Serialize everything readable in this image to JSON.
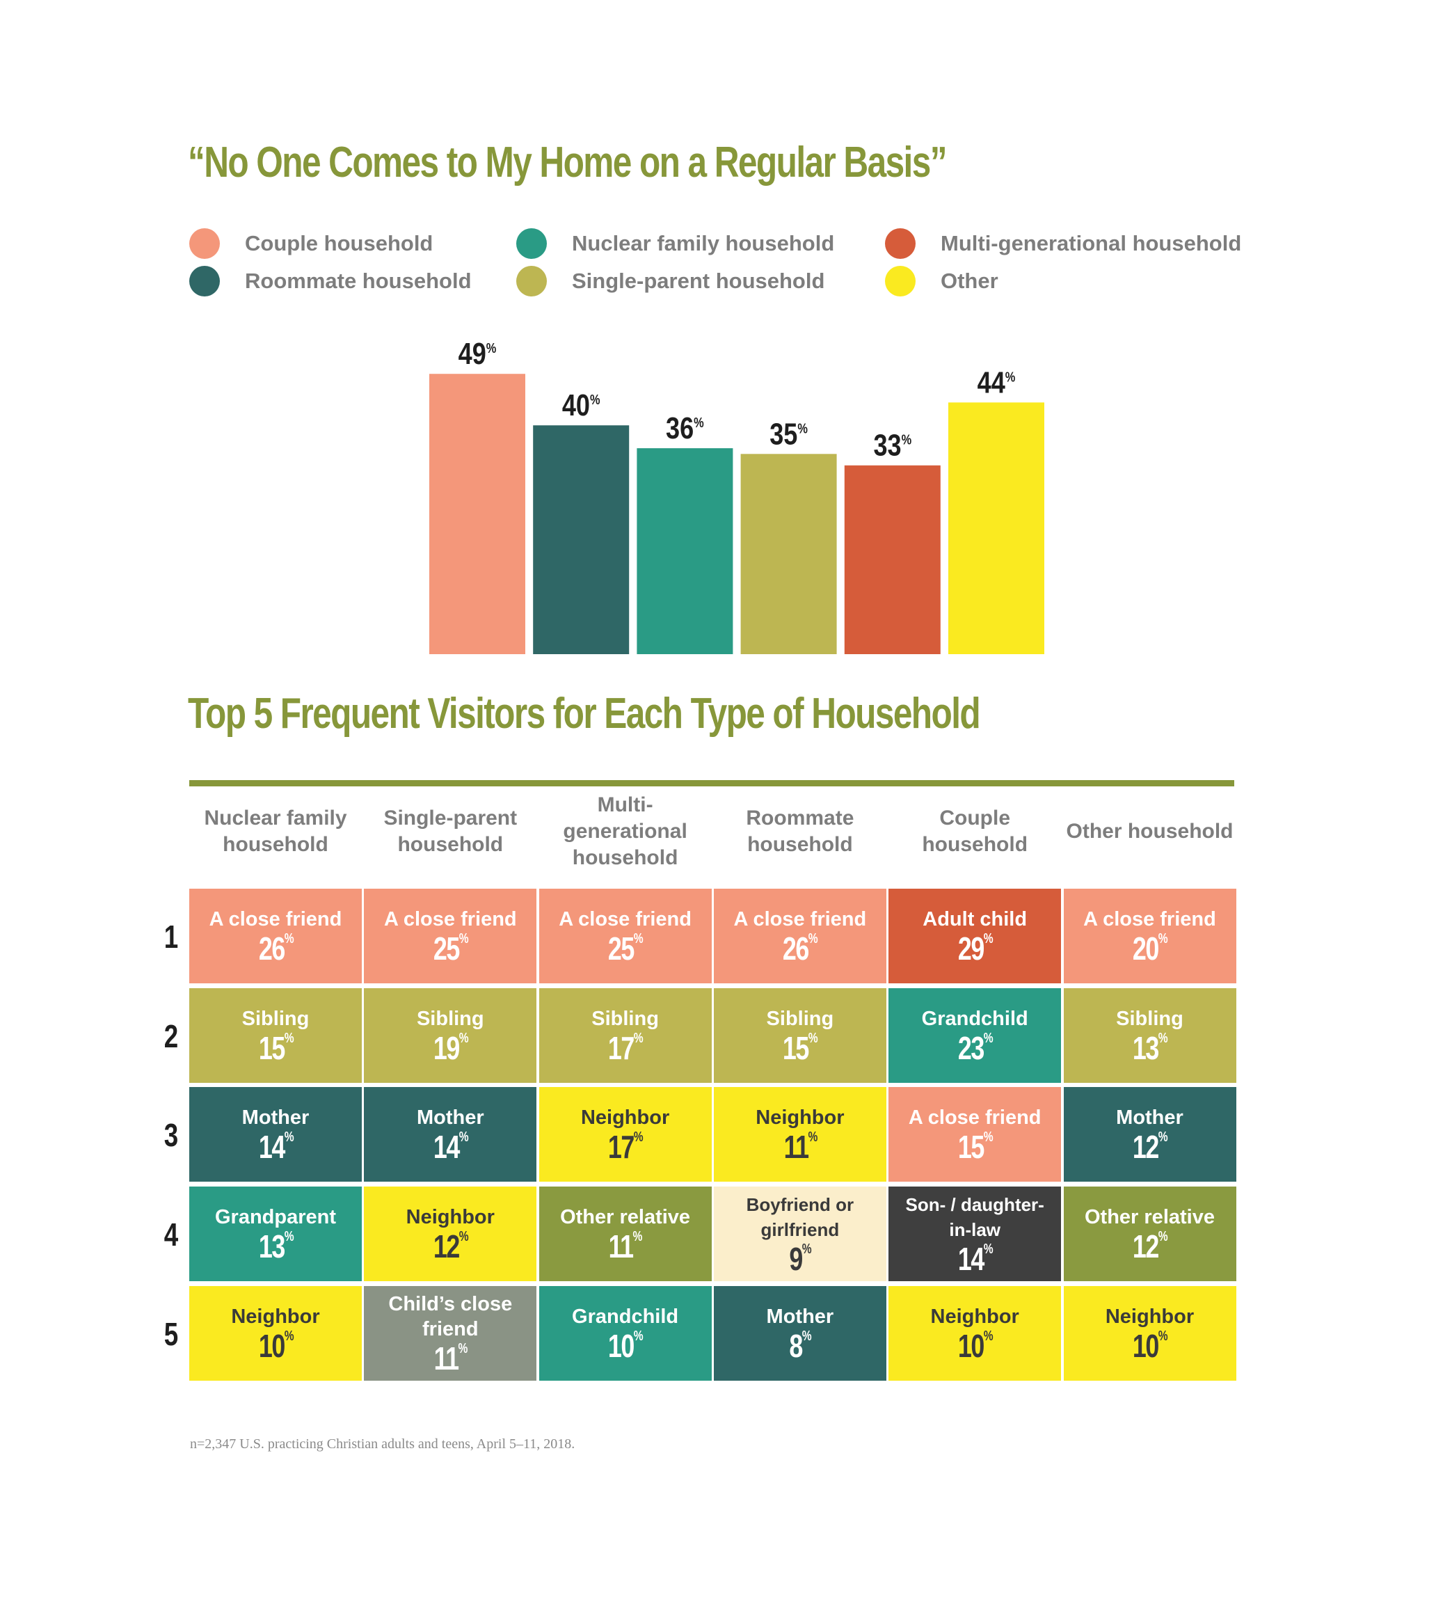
{
  "chart_data": [
    {
      "type": "bar",
      "title": "“No One Comes to My Home on a Regular Basis”",
      "categories": [
        "Couple household",
        "Roommate household",
        "Nuclear family household",
        "Single-parent household",
        "Multi-generational household",
        "Other"
      ],
      "values": [
        49,
        40,
        36,
        35,
        33,
        44
      ],
      "value_labels": [
        "49%",
        "40%",
        "36%",
        "35%",
        "33%",
        "44%"
      ],
      "colors": [
        "#f4977a",
        "#2f6766",
        "#2a9b85",
        "#bdb652",
        "#d65c3a",
        "#faea20"
      ],
      "ylim": [
        0,
        50
      ],
      "legend_position": "top",
      "legend": [
        {
          "label": "Couple household",
          "color": "#f4977a"
        },
        {
          "label": "Roommate household",
          "color": "#2f6766"
        },
        {
          "label": "Nuclear family household",
          "color": "#2a9b85"
        },
        {
          "label": "Single-parent household",
          "color": "#bdb652"
        },
        {
          "label": "Multi-generational household",
          "color": "#d65c3a"
        },
        {
          "label": "Other",
          "color": "#faea20"
        }
      ]
    },
    {
      "type": "table",
      "title": "Top 5 Frequent Visitors for Each Type of Household",
      "ranks": [
        "1",
        "2",
        "3",
        "4",
        "5"
      ],
      "columns": [
        "Nuclear family household",
        "Single-parent household",
        "Multi-generational household",
        "Roommate household",
        "Couple household",
        "Other household"
      ],
      "rows": [
        [
          {
            "label": "A close friend",
            "value": 26,
            "color": "#f4977a",
            "text": "#ffffff"
          },
          {
            "label": "A close friend",
            "value": 25,
            "color": "#f4977a",
            "text": "#ffffff"
          },
          {
            "label": "A close friend",
            "value": 25,
            "color": "#f4977a",
            "text": "#ffffff"
          },
          {
            "label": "A close friend",
            "value": 26,
            "color": "#f4977a",
            "text": "#ffffff"
          },
          {
            "label": "Adult child",
            "value": 29,
            "color": "#d65c3a",
            "text": "#ffffff"
          },
          {
            "label": "A close friend",
            "value": 20,
            "color": "#f4977a",
            "text": "#ffffff"
          }
        ],
        [
          {
            "label": "Sibling",
            "value": 15,
            "color": "#bdb652",
            "text": "#ffffff"
          },
          {
            "label": "Sibling",
            "value": 19,
            "color": "#bdb652",
            "text": "#ffffff"
          },
          {
            "label": "Sibling",
            "value": 17,
            "color": "#bdb652",
            "text": "#ffffff"
          },
          {
            "label": "Sibling",
            "value": 15,
            "color": "#bdb652",
            "text": "#ffffff"
          },
          {
            "label": "Grandchild",
            "value": 23,
            "color": "#2a9b85",
            "text": "#ffffff"
          },
          {
            "label": "Sibling",
            "value": 13,
            "color": "#bdb652",
            "text": "#ffffff"
          }
        ],
        [
          {
            "label": "Mother",
            "value": 14,
            "color": "#2f6766",
            "text": "#ffffff"
          },
          {
            "label": "Mother",
            "value": 14,
            "color": "#2f6766",
            "text": "#ffffff"
          },
          {
            "label": "Neighbor",
            "value": 17,
            "color": "#faea20",
            "text": "#3a3a3a"
          },
          {
            "label": "Neighbor",
            "value": 11,
            "color": "#faea20",
            "text": "#3a3a3a"
          },
          {
            "label": "A close friend",
            "value": 15,
            "color": "#f4977a",
            "text": "#ffffff"
          },
          {
            "label": "Mother",
            "value": 12,
            "color": "#2f6766",
            "text": "#ffffff"
          }
        ],
        [
          {
            "label": "Grandparent",
            "value": 13,
            "color": "#2a9b85",
            "text": "#ffffff"
          },
          {
            "label": "Neighbor",
            "value": 12,
            "color": "#faea20",
            "text": "#3a3a3a"
          },
          {
            "label": "Other relative",
            "value": 11,
            "color": "#8a9a40",
            "text": "#ffffff"
          },
          {
            "label": "Boyfriend or girlfriend",
            "value": 9,
            "color": "#fbeecb",
            "text": "#3a3a3a"
          },
          {
            "label": "Son- / daughter-in-law",
            "value": 14,
            "color": "#3f3f3f",
            "text": "#ffffff"
          },
          {
            "label": "Other relative",
            "value": 12,
            "color": "#8a9a40",
            "text": "#ffffff"
          }
        ],
        [
          {
            "label": "Neighbor",
            "value": 10,
            "color": "#faea20",
            "text": "#3a3a3a"
          },
          {
            "label": "Child’s close friend",
            "value": 11,
            "color": "#8a9385",
            "text": "#ffffff"
          },
          {
            "label": "Grandchild",
            "value": 10,
            "color": "#2a9b85",
            "text": "#ffffff"
          },
          {
            "label": "Mother",
            "value": 8,
            "color": "#2f6766",
            "text": "#ffffff"
          },
          {
            "label": "Neighbor",
            "value": 10,
            "color": "#faea20",
            "text": "#3a3a3a"
          },
          {
            "label": "Neighbor",
            "value": 10,
            "color": "#faea20",
            "text": "#3a3a3a"
          }
        ]
      ]
    }
  ],
  "footnote": "n=2,347 U.S. practicing Christian adults and teens, April 5–11, 2018."
}
